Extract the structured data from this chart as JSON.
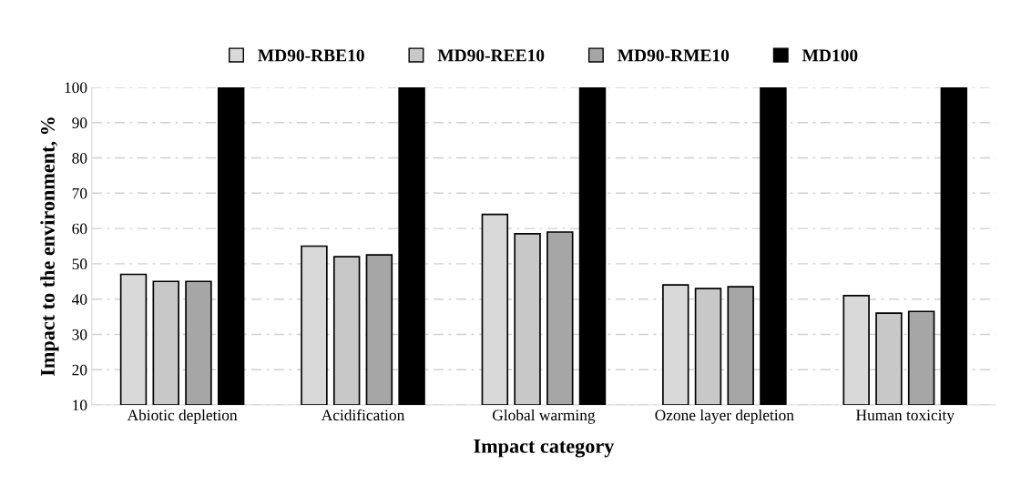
{
  "chart_data": {
    "type": "bar",
    "xlabel": "Impact category",
    "ylabel": "Impact to the environment, %",
    "categories": [
      "Abiotic depletion",
      "Acidification",
      "Global warming",
      "Ozone layer depletion",
      "Human toxicity"
    ],
    "series": [
      {
        "name": "MD90-RBE10",
        "color": "#d9d9d9",
        "values": [
          47,
          55,
          64,
          44,
          41
        ]
      },
      {
        "name": "MD90-REE10",
        "color": "#c8c8c8",
        "values": [
          45,
          52,
          58.5,
          43,
          36
        ]
      },
      {
        "name": "MD90-RME10",
        "color": "#a6a6a6",
        "values": [
          45,
          52.5,
          59,
          43.5,
          36.5
        ]
      },
      {
        "name": "MD100",
        "color": "#000000",
        "values": [
          100,
          100,
          100,
          100,
          100
        ]
      }
    ],
    "ylim": [
      10,
      100
    ],
    "yticks": [
      10,
      20,
      30,
      40,
      50,
      60,
      70,
      80,
      90,
      100
    ],
    "grid": "y",
    "legend": "top"
  }
}
